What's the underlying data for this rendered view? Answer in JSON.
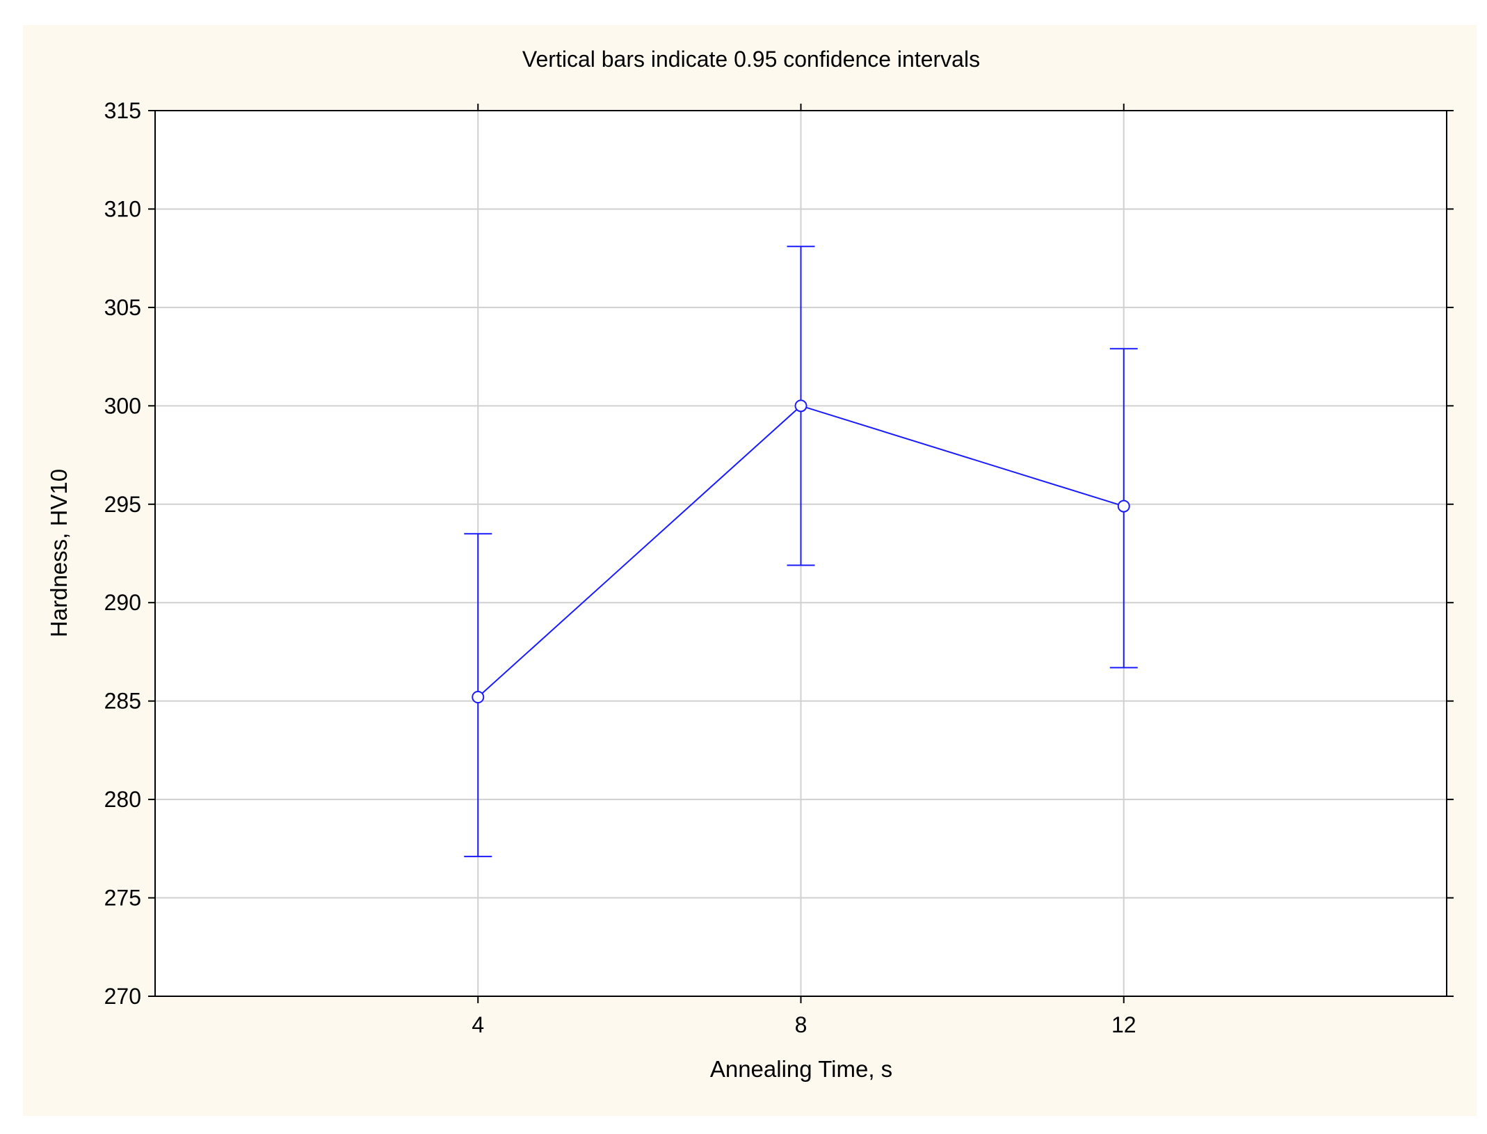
{
  "chart_data": {
    "type": "line",
    "title": "Vertical bars indicate 0.95 confidence intervals",
    "xlabel": "Annealing Time, s",
    "ylabel": "Hardness, HV10",
    "categories": [
      "4",
      "8",
      "12"
    ],
    "series": [
      {
        "values": [
          285.2,
          300.0,
          294.9
        ],
        "ci_lower": [
          277.1,
          291.9,
          286.7
        ],
        "ci_upper": [
          293.5,
          308.1,
          302.9
        ]
      }
    ],
    "ylim": [
      270,
      315
    ],
    "yticks": [
      270,
      275,
      280,
      285,
      290,
      295,
      300,
      305,
      310,
      315
    ],
    "grid": true,
    "legend": "none",
    "colors": {
      "background": "#fdf9ef",
      "plot_area": "#ffffff",
      "grid": "#d0d0d0",
      "series": "#1a1aff",
      "text": "#000000"
    }
  }
}
